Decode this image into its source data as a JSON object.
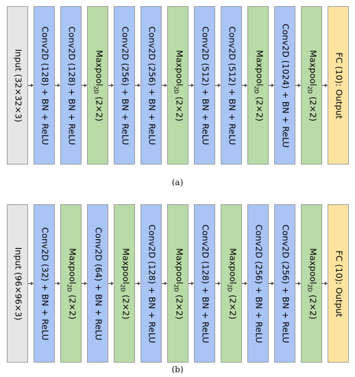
{
  "diagrams": [
    {
      "caption": "(a)",
      "blocks": [
        {
          "type": "input",
          "text": "Input (32×32×3)"
        },
        {
          "type": "conv",
          "text": "Conv2D (128) + BN + ReLU"
        },
        {
          "type": "conv",
          "text": "Conv2D (128) + BN + ReLU"
        },
        {
          "type": "pool",
          "text": "Maxpool",
          "sub": "2D",
          "tail": " (2×2)"
        },
        {
          "type": "conv",
          "text": "Conv2D (256) + BN + ReLU"
        },
        {
          "type": "conv",
          "text": "Conv2D (256) + BN + ReLU"
        },
        {
          "type": "pool",
          "text": "Maxpool",
          "sub": "2D",
          "tail": " (2×2)"
        },
        {
          "type": "conv",
          "text": "Conv2D (512) + BN + ReLU"
        },
        {
          "type": "conv",
          "text": "Conv2D (512) + BN + ReLU"
        },
        {
          "type": "pool",
          "text": "Maxpool",
          "sub": "2D",
          "tail": " (2×2)"
        },
        {
          "type": "conv",
          "text": "Conv2D (1024) + BN + ReLU"
        },
        {
          "type": "pool",
          "text": "Maxpool",
          "sub": "2D",
          "tail": " (2×2)"
        },
        {
          "type": "fc",
          "text": "FC (10): Output"
        }
      ]
    },
    {
      "caption": "(b)",
      "blocks": [
        {
          "type": "input",
          "text": "Input (96×96×3)"
        },
        {
          "type": "conv",
          "text": "Conv2D (32) + BN + ReLU"
        },
        {
          "type": "pool",
          "text": "Maxpool",
          "sub": "2D",
          "tail": " (2×2)"
        },
        {
          "type": "conv",
          "text": "Conv2D (64) + BN + ReLU"
        },
        {
          "type": "pool",
          "text": "Maxpool",
          "sub": "2D",
          "tail": " (2×2)"
        },
        {
          "type": "conv",
          "text": "Conv2D (128) + BN + ReLU"
        },
        {
          "type": "pool",
          "text": "Maxpool",
          "sub": "2D",
          "tail": " (2×2)"
        },
        {
          "type": "conv",
          "text": "Conv2D (128) + BN + ReLU"
        },
        {
          "type": "pool",
          "text": "Maxpool",
          "sub": "2D",
          "tail": " (2×2)"
        },
        {
          "type": "conv",
          "text": "Conv2D (256) + BN + ReLU"
        },
        {
          "type": "conv",
          "text": "Conv2D (256) + BN + ReLU"
        },
        {
          "type": "pool",
          "text": "Maxpool",
          "sub": "2D",
          "tail": " (2×2)"
        },
        {
          "type": "fc",
          "text": "FC (10): Output"
        }
      ]
    }
  ],
  "colors": {
    "input": "#e6e6e6",
    "conv": "#a9c4f5",
    "pool": "#b9dba7",
    "fc": "#fce4a0",
    "arrow": "#444444"
  }
}
